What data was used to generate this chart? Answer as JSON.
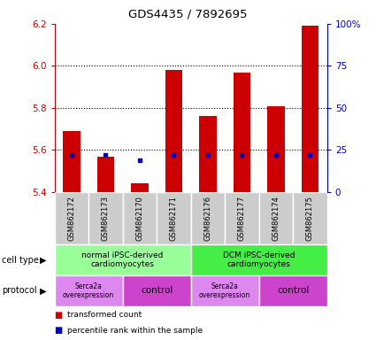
{
  "title": "GDS4435 / 7892695",
  "samples": [
    "GSM862172",
    "GSM862173",
    "GSM862170",
    "GSM862171",
    "GSM862176",
    "GSM862177",
    "GSM862174",
    "GSM862175"
  ],
  "transformed_counts": [
    5.69,
    5.57,
    5.44,
    5.98,
    5.76,
    5.97,
    5.81,
    6.19
  ],
  "percentile_ranks": [
    0.22,
    0.22,
    0.19,
    0.22,
    0.22,
    0.22,
    0.22,
    0.22
  ],
  "ylim": [
    5.4,
    6.2
  ],
  "yticks": [
    5.4,
    5.6,
    5.8,
    6.0,
    6.2
  ],
  "right_yticks": [
    0,
    25,
    50,
    75,
    100
  ],
  "right_ylim": [
    0,
    100
  ],
  "bar_color": "#cc0000",
  "dot_color": "#0000cc",
  "left_tick_color": "#cc0000",
  "right_tick_color": "#0000cc",
  "cell_type_groups": [
    {
      "label": "normal iPSC-derived\ncardiomyocytes",
      "start": 0,
      "end": 4,
      "color": "#99ff99"
    },
    {
      "label": "DCM iPSC-derived\ncardiomyocytes",
      "start": 4,
      "end": 8,
      "color": "#44ee44"
    }
  ],
  "protocol_groups": [
    {
      "label": "Serca2a\noverexpression",
      "start": 0,
      "end": 2,
      "color": "#dd88ee"
    },
    {
      "label": "control",
      "start": 2,
      "end": 4,
      "color": "#cc44cc"
    },
    {
      "label": "Serca2a\noverexpression",
      "start": 4,
      "end": 6,
      "color": "#dd88ee"
    },
    {
      "label": "control",
      "start": 6,
      "end": 8,
      "color": "#cc44cc"
    }
  ],
  "legend_red_label": "transformed count",
  "legend_blue_label": "percentile rank within the sample",
  "cell_type_label": "cell type",
  "protocol_label": "protocol",
  "sample_bg_color": "#cccccc",
  "sample_border_color": "#ffffff"
}
